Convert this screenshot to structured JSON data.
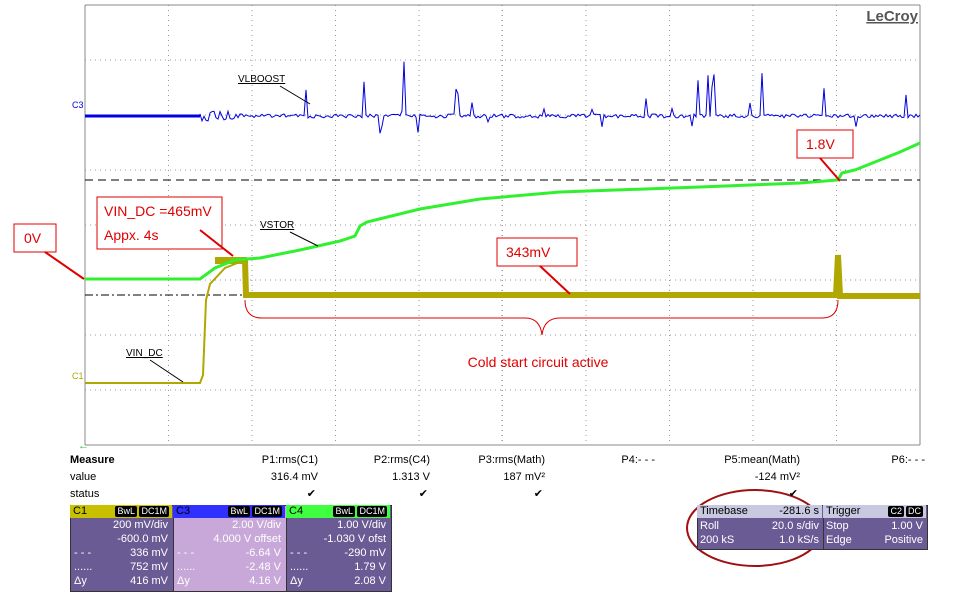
{
  "screen": {
    "brand": "LeCroy",
    "labels": {
      "c3_marker": "C3",
      "vlboost": "VLBOOST",
      "vstor": "VSTOR",
      "vin_dc": "VIN_DC",
      "c1_marker": "C1"
    }
  },
  "annotations": {
    "zero": "0V",
    "vin_dc_box": [
      "VIN_DC =465mV",
      "Appx. 4s"
    ],
    "v343": "343mV",
    "v18": "1.8V",
    "cold_start": "Cold start circuit active"
  },
  "measure": {
    "title": "Measure",
    "row_labels": [
      "value",
      "status"
    ],
    "params": [
      {
        "name": "P1:rms(C1)",
        "value": "316.4 mV",
        "status": "✔"
      },
      {
        "name": "P2:rms(C4)",
        "value": "1.313 V",
        "status": "✔"
      },
      {
        "name": "P3:rms(Math)",
        "value": "187 mV²",
        "status": "✔"
      },
      {
        "name": "P4:- - -"
      },
      {
        "name": "P5:mean(Math)",
        "value": "-124 mV²",
        "status": "✔"
      },
      {
        "name": "P6:- - -"
      }
    ]
  },
  "channels": [
    {
      "name": "C1",
      "badges": [
        "BwL",
        "DC1M"
      ],
      "rows": [
        {
          "value": "200 mV/div"
        },
        {
          "value": "-600.0 mV"
        },
        {
          "label": "- - -",
          "value": "336 mV"
        },
        {
          "label": "......",
          "value": "752 mV"
        },
        {
          "label": "Δy",
          "value": "416 mV"
        }
      ]
    },
    {
      "name": "C3",
      "badges": [
        "BwL",
        "DC1M"
      ],
      "rows": [
        {
          "value": "2.00 V/div"
        },
        {
          "value": "4.000 V offset"
        },
        {
          "label": "- - -",
          "value": "-6.64 V"
        },
        {
          "label": "......",
          "value": "-2.48 V"
        },
        {
          "label": "Δy",
          "value": "4.16 V"
        }
      ]
    },
    {
      "name": "C4",
      "badges": [
        "BwL",
        "DC1M"
      ],
      "rows": [
        {
          "value": "1.00 V/div"
        },
        {
          "value": "-1.030 V ofst"
        },
        {
          "label": "- - -",
          "value": "-290 mV"
        },
        {
          "label": "......",
          "value": "1.79 V"
        },
        {
          "label": "Δy",
          "value": "2.08 V"
        }
      ]
    }
  ],
  "timebase": {
    "title": "Timebase",
    "value": "-281.6 s",
    "rows": [
      {
        "label": "Roll",
        "value": "20.0 s/div"
      },
      {
        "label": "200 kS",
        "value": "1.0 kS/s"
      }
    ]
  },
  "trigger": {
    "title": "Trigger",
    "badges": [
      "C2",
      "DC"
    ],
    "rows": [
      {
        "label": "Stop",
        "value": "1.00 V"
      },
      {
        "label": "Edge",
        "value": "Positive"
      }
    ]
  }
}
